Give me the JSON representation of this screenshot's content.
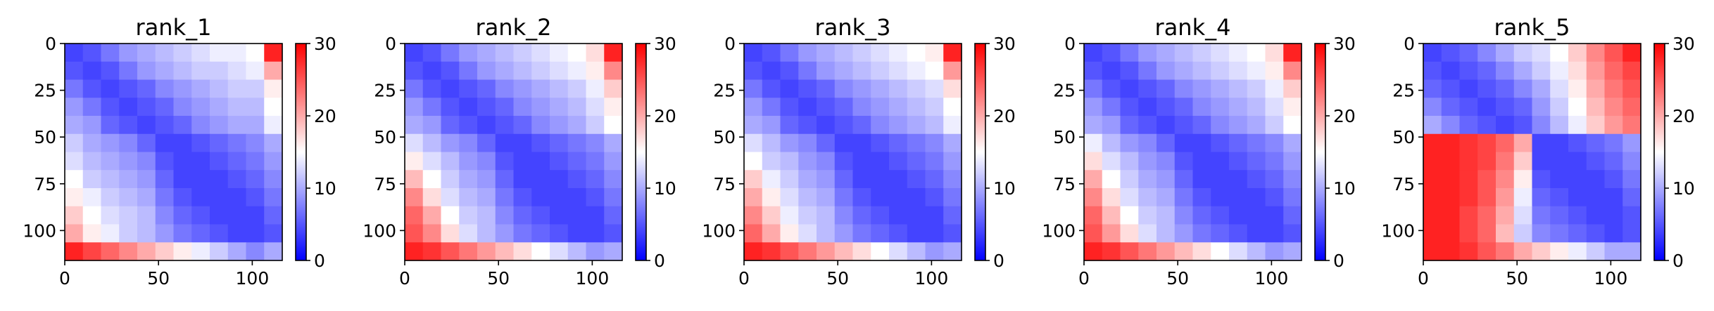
{
  "chart_data": {
    "type": "heatmap",
    "colormap": {
      "low": "#0000ff",
      "mid": "#ffffff",
      "high": "#ff0000"
    },
    "panels": [
      {
        "title": "rank_1",
        "rows": 116,
        "cols": 116,
        "x_ticks": [
          "0",
          "50",
          "100"
        ],
        "y_ticks": [
          "0",
          "25",
          "50",
          "75",
          "100"
        ],
        "colorbar": {
          "min": 0,
          "max": 30,
          "ticks": [
            "0",
            "10",
            "20",
            "30"
          ]
        },
        "values_coarse": [
          [
            4,
            5,
            7,
            9,
            10,
            11,
            12,
            13,
            14,
            14,
            15,
            28
          ],
          [
            5,
            4,
            5,
            7,
            9,
            10,
            11,
            12,
            12,
            13,
            14,
            20
          ],
          [
            7,
            5,
            4,
            5,
            6,
            8,
            9,
            10,
            11,
            12,
            12,
            16
          ],
          [
            9,
            7,
            5,
            4,
            5,
            6,
            8,
            9,
            10,
            11,
            11,
            15
          ],
          [
            10,
            9,
            6,
            5,
            4,
            5,
            6,
            8,
            9,
            10,
            10,
            14
          ],
          [
            12,
            10,
            9,
            8,
            6,
            4,
            4,
            5,
            6,
            7,
            8,
            10
          ],
          [
            13,
            11,
            10,
            9,
            8,
            5,
            4,
            4,
            5,
            6,
            7,
            9
          ],
          [
            15,
            12,
            11,
            10,
            9,
            6,
            4,
            4,
            4,
            5,
            6,
            8
          ],
          [
            16,
            14,
            12,
            11,
            10,
            7,
            5,
            4,
            4,
            4,
            5,
            7
          ],
          [
            18,
            15,
            13,
            12,
            11,
            8,
            6,
            5,
            4,
            4,
            4,
            6
          ],
          [
            20,
            16,
            14,
            12,
            11,
            9,
            7,
            6,
            5,
            4,
            4,
            5
          ],
          [
            28,
            26,
            24,
            22,
            20,
            18,
            16,
            14,
            12,
            10,
            8,
            10
          ]
        ]
      },
      {
        "title": "rank_2",
        "rows": 116,
        "cols": 116,
        "x_ticks": [
          "0",
          "50",
          "100"
        ],
        "y_ticks": [
          "0",
          "25",
          "50",
          "75",
          "100"
        ],
        "colorbar": {
          "min": 0,
          "max": 30,
          "ticks": [
            "0",
            "10",
            "20",
            "30"
          ]
        },
        "values_coarse": [
          [
            4,
            5,
            7,
            9,
            10,
            11,
            12,
            13,
            14,
            15,
            17,
            28
          ],
          [
            5,
            4,
            5,
            7,
            9,
            10,
            11,
            12,
            13,
            14,
            16,
            22
          ],
          [
            7,
            5,
            4,
            5,
            6,
            8,
            9,
            10,
            11,
            12,
            14,
            18
          ],
          [
            9,
            7,
            5,
            4,
            5,
            6,
            8,
            9,
            10,
            11,
            13,
            16
          ],
          [
            10,
            9,
            6,
            5,
            4,
            5,
            6,
            8,
            9,
            10,
            12,
            15
          ],
          [
            13,
            11,
            9,
            8,
            6,
            4,
            4,
            5,
            6,
            7,
            8,
            10
          ],
          [
            16,
            13,
            11,
            9,
            8,
            5,
            4,
            4,
            5,
            6,
            7,
            9
          ],
          [
            19,
            15,
            12,
            10,
            9,
            6,
            4,
            4,
            4,
            5,
            6,
            8
          ],
          [
            22,
            17,
            13,
            11,
            10,
            7,
            5,
            4,
            4,
            4,
            5,
            7
          ],
          [
            24,
            20,
            15,
            12,
            11,
            8,
            6,
            5,
            4,
            4,
            4,
            6
          ],
          [
            25,
            22,
            17,
            13,
            11,
            9,
            7,
            6,
            5,
            4,
            4,
            5
          ],
          [
            28,
            27,
            25,
            23,
            21,
            19,
            17,
            15,
            13,
            11,
            9,
            10
          ]
        ]
      },
      {
        "title": "rank_3",
        "rows": 116,
        "cols": 116,
        "x_ticks": [
          "0",
          "50",
          "100"
        ],
        "y_ticks": [
          "0",
          "25",
          "50",
          "75",
          "100"
        ],
        "colorbar": {
          "min": 0,
          "max": 30,
          "ticks": [
            "0",
            "10",
            "20",
            "30"
          ]
        },
        "values_coarse": [
          [
            4,
            5,
            7,
            9,
            10,
            11,
            12,
            13,
            14,
            15,
            16,
            28
          ],
          [
            5,
            4,
            5,
            7,
            9,
            10,
            11,
            12,
            13,
            14,
            15,
            21
          ],
          [
            7,
            5,
            4,
            5,
            6,
            8,
            9,
            10,
            11,
            12,
            13,
            17
          ],
          [
            9,
            7,
            5,
            4,
            5,
            6,
            8,
            9,
            10,
            11,
            12,
            15
          ],
          [
            10,
            9,
            6,
            5,
            4,
            5,
            6,
            8,
            9,
            10,
            11,
            14
          ],
          [
            13,
            11,
            9,
            8,
            6,
            4,
            4,
            5,
            6,
            7,
            8,
            10
          ],
          [
            15,
            12,
            11,
            9,
            8,
            5,
            4,
            4,
            5,
            6,
            7,
            9
          ],
          [
            18,
            14,
            12,
            10,
            9,
            6,
            4,
            4,
            4,
            5,
            6,
            8
          ],
          [
            20,
            16,
            13,
            11,
            10,
            7,
            5,
            4,
            4,
            4,
            5,
            7
          ],
          [
            22,
            18,
            14,
            12,
            11,
            8,
            6,
            5,
            4,
            4,
            4,
            6
          ],
          [
            24,
            20,
            16,
            13,
            11,
            9,
            7,
            6,
            5,
            4,
            4,
            5
          ],
          [
            28,
            27,
            25,
            23,
            21,
            19,
            17,
            15,
            13,
            11,
            9,
            10
          ]
        ]
      },
      {
        "title": "rank_4",
        "rows": 116,
        "cols": 116,
        "x_ticks": [
          "0",
          "50",
          "100"
        ],
        "y_ticks": [
          "0",
          "25",
          "50",
          "75",
          "100"
        ],
        "colorbar": {
          "min": 0,
          "max": 30,
          "ticks": [
            "0",
            "10",
            "20",
            "30"
          ]
        },
        "values_coarse": [
          [
            4,
            5,
            7,
            9,
            10,
            11,
            12,
            13,
            14,
            15,
            17,
            28
          ],
          [
            5,
            4,
            5,
            7,
            9,
            10,
            11,
            12,
            13,
            14,
            16,
            22
          ],
          [
            7,
            5,
            4,
            5,
            6,
            8,
            9,
            10,
            11,
            12,
            14,
            18
          ],
          [
            9,
            7,
            5,
            4,
            5,
            6,
            8,
            9,
            10,
            11,
            13,
            16
          ],
          [
            10,
            9,
            6,
            5,
            4,
            5,
            6,
            8,
            9,
            10,
            12,
            15
          ],
          [
            14,
            11,
            9,
            8,
            6,
            4,
            4,
            5,
            6,
            7,
            8,
            10
          ],
          [
            17,
            13,
            11,
            9,
            8,
            5,
            4,
            4,
            5,
            6,
            7,
            9
          ],
          [
            20,
            15,
            12,
            10,
            9,
            6,
            4,
            4,
            4,
            5,
            6,
            8
          ],
          [
            22,
            17,
            13,
            11,
            10,
            7,
            5,
            4,
            4,
            4,
            5,
            7
          ],
          [
            24,
            19,
            15,
            12,
            11,
            8,
            6,
            5,
            4,
            4,
            4,
            6
          ],
          [
            25,
            21,
            17,
            13,
            11,
            9,
            7,
            6,
            5,
            4,
            4,
            5
          ],
          [
            28,
            27,
            25,
            23,
            21,
            19,
            17,
            15,
            13,
            11,
            9,
            10
          ]
        ]
      },
      {
        "title": "rank_5",
        "rows": 116,
        "cols": 116,
        "x_ticks": [
          "0",
          "50",
          "100"
        ],
        "y_ticks": [
          "0",
          "25",
          "50",
          "75",
          "100"
        ],
        "colorbar": {
          "min": 0,
          "max": 30,
          "ticks": [
            "0",
            "10",
            "20",
            "30"
          ]
        },
        "values_coarse": [
          [
            4,
            5,
            6,
            8,
            10,
            12,
            13,
            15,
            18,
            22,
            25,
            28
          ],
          [
            5,
            4,
            5,
            6,
            8,
            10,
            12,
            14,
            17,
            21,
            24,
            26
          ],
          [
            6,
            5,
            4,
            5,
            6,
            8,
            10,
            13,
            16,
            20,
            23,
            25
          ],
          [
            8,
            6,
            5,
            4,
            5,
            6,
            9,
            12,
            15,
            19,
            22,
            24
          ],
          [
            10,
            8,
            6,
            5,
            4,
            5,
            8,
            11,
            14,
            18,
            21,
            23
          ],
          [
            28,
            28,
            27,
            26,
            24,
            20,
            4,
            4,
            5,
            6,
            7,
            9
          ],
          [
            28,
            28,
            27,
            26,
            23,
            18,
            4,
            4,
            4,
            5,
            6,
            8
          ],
          [
            28,
            28,
            27,
            25,
            22,
            16,
            5,
            4,
            4,
            4,
            5,
            7
          ],
          [
            28,
            28,
            27,
            25,
            21,
            14,
            6,
            5,
            4,
            4,
            4,
            6
          ],
          [
            28,
            28,
            26,
            24,
            20,
            13,
            7,
            6,
            5,
            4,
            4,
            5
          ],
          [
            28,
            28,
            26,
            24,
            19,
            12,
            8,
            7,
            6,
            5,
            4,
            5
          ],
          [
            28,
            28,
            27,
            25,
            23,
            20,
            18,
            16,
            14,
            12,
            10,
            10
          ]
        ]
      }
    ]
  }
}
